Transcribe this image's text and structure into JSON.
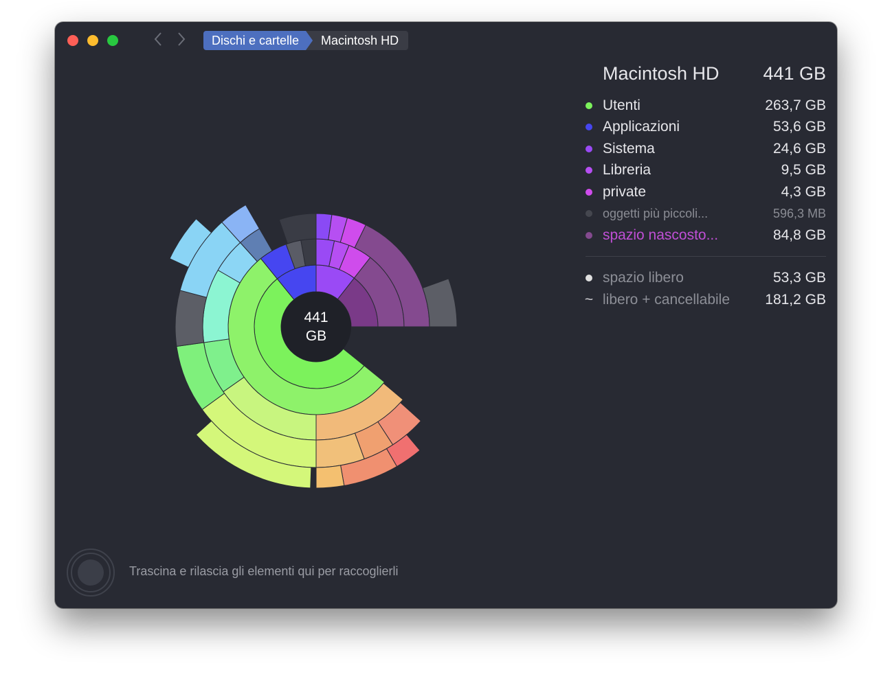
{
  "breadcrumb": {
    "root": "Dischi e cartelle",
    "current": "Macintosh HD"
  },
  "nav": {
    "back_icon": "chevron-left-icon",
    "forward_icon": "chevron-right-icon"
  },
  "center": {
    "value": "441",
    "unit": "GB"
  },
  "summary": {
    "title": "Macintosh HD",
    "total": "441 GB",
    "items": [
      {
        "label": "Utenti",
        "value": "263,7 GB",
        "color": "#7cf25c"
      },
      {
        "label": "Applicazioni",
        "value": "53,6 GB",
        "color": "#4646f0"
      },
      {
        "label": "Sistema",
        "value": "24,6 GB",
        "color": "#9a4af5"
      },
      {
        "label": "Libreria",
        "value": "9,5 GB",
        "color": "#b64ff2"
      },
      {
        "label": "private",
        "value": "4,3 GB",
        "color": "#cf4cec"
      },
      {
        "label": "oggetti più piccoli...",
        "value": "596,3  MB",
        "color": "#45474f"
      },
      {
        "label": "spazio nascosto...",
        "value": "84,8 GB",
        "color": "#844a8f"
      }
    ],
    "free": {
      "label": "spazio libero",
      "value": "53,3 GB",
      "color": "#e0e0e0"
    },
    "purgeable": {
      "symbol": "~",
      "label": "libero + cancellabile",
      "value": "181,2 GB"
    }
  },
  "footer": {
    "drop_text": "Trascina e rilascia gli elementi qui per raccoglierli"
  }
}
